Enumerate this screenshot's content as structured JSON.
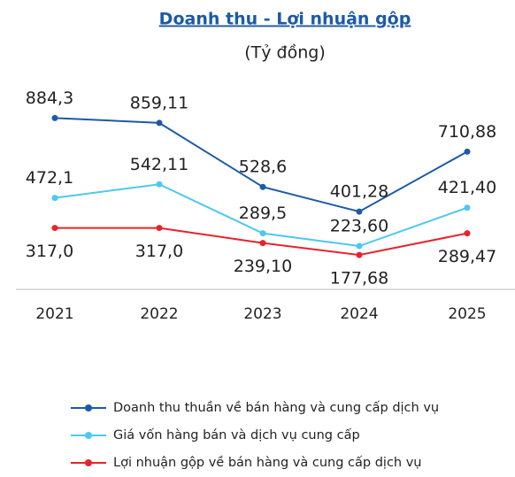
{
  "chart_data": {
    "type": "line",
    "title": "Doanh thu - Lợi nhuận gộp",
    "subtitle": "(Tỷ đồng)",
    "categories": [
      "2021",
      "2022",
      "2023",
      "2024",
      "2025"
    ],
    "series": [
      {
        "name": "Doanh thu thuần về bán hàng và cung cấp dịch vụ",
        "color": "#1d5aa6",
        "values": [
          884.3,
          859.11,
          528.6,
          401.28,
          710.88
        ],
        "value_labels": [
          "884,3",
          "859,11",
          "528,6",
          "401,28",
          "710,88"
        ]
      },
      {
        "name": "Giá vốn hàng bán và dịch vụ cung cấp",
        "color": "#4cc8f0",
        "values": [
          472.1,
          542.11,
          289.5,
          223.6,
          421.4
        ],
        "value_labels": [
          "472,1",
          "542,11",
          "289,5",
          "223,60",
          "421,40"
        ]
      },
      {
        "name": "Lợi nhuận gộp về bán hàng và cung cấp dịch vụ",
        "color": "#e8232b",
        "values": [
          317.0,
          317.0,
          239.1,
          177.68,
          289.47
        ],
        "value_labels": [
          "317,0",
          "317,0",
          "239,10",
          "177,68",
          "289,47"
        ]
      }
    ],
    "ylim": [
      0,
      1000
    ]
  }
}
